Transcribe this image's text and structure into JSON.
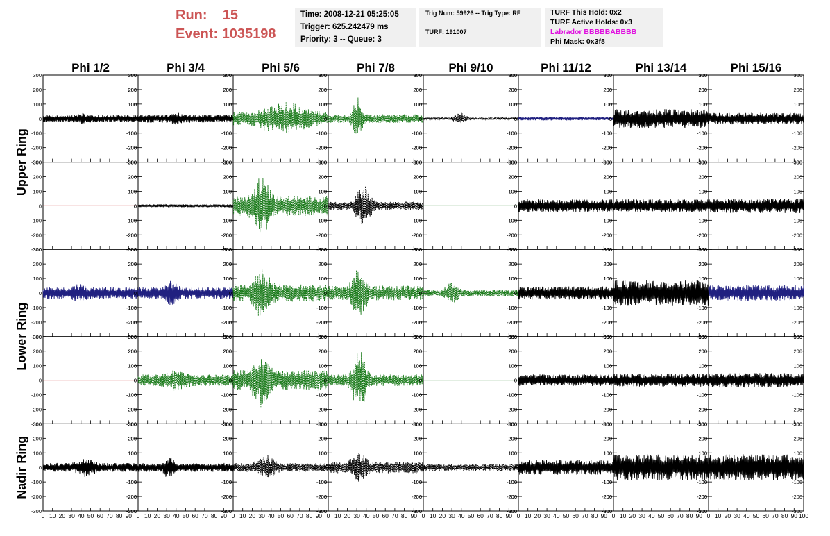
{
  "header": {
    "run_label": "Run:",
    "run": "15",
    "event_label": "Event:",
    "event": "1035198"
  },
  "info": {
    "time": "Time: 2008-12-21 05:25:05",
    "trigger": "Trigger: 625.242479 ms",
    "priority": "Priority: 3 -- Queue: 3",
    "trig": "Trig Num: 59926 -- Trig Type: RF",
    "turf": "TURF: 191007",
    "turf_hold": "TURF This Hold: 0x2",
    "turf_active": "TURF Active Holds: 0x3",
    "labrador": "Labrador BBBBBABBBB",
    "phi_mask": "Phi Mask: 0x3f8"
  },
  "chart_data": {
    "type": "line",
    "columns": [
      "Phi 1/2",
      "Phi 3/4",
      "Phi 5/6",
      "Phi 7/8",
      "Phi 9/10",
      "Phi 11/12",
      "Phi 13/14",
      "Phi 15/16"
    ],
    "ring_labels": [
      "Upper Ring",
      "Lower Ring",
      "Nadir Ring"
    ],
    "xlim": [
      0,
      100
    ],
    "ylim": [
      -300,
      300
    ],
    "xticks": [
      "0",
      "10",
      "20",
      "30",
      "40",
      "50",
      "60",
      "70",
      "80",
      "90",
      "100"
    ],
    "yticks": [
      "-300",
      "-200",
      "-100",
      "0",
      "100",
      "200",
      "300"
    ],
    "colors": {
      "black": "#000000",
      "green": "#1a7a1a",
      "blue": "#202080",
      "red": "#cc2222",
      "labrador": "#e010e0",
      "header": "#cc5555"
    },
    "rows": [
      [
        {
          "style": "black",
          "amp": 25,
          "burst": [
            30,
            55
          ],
          "burst_amp": 40
        },
        {
          "style": "black",
          "amp": 28,
          "burst": [
            30,
            50
          ],
          "burst_amp": 50
        },
        {
          "style": "green",
          "dashed": true,
          "amp": 45,
          "burst": [
            15,
            95
          ],
          "burst_amp": 130
        },
        {
          "style": "green",
          "dashed": true,
          "amp": 30,
          "burst": [
            22,
            40
          ],
          "burst_amp": 170
        },
        {
          "style": "black",
          "dashed": true,
          "amp": 8,
          "burst": [
            28,
            50
          ],
          "burst_amp": 60
        },
        {
          "style": "blue",
          "amp": 12,
          "burst": [
            20,
            60
          ],
          "burst_amp": 15
        },
        {
          "style": "black",
          "amp": 65,
          "burst": [
            0,
            100
          ],
          "burst_amp": 65
        },
        {
          "style": "black",
          "amp": 40,
          "burst": [
            0,
            100
          ],
          "burst_amp": 40
        }
      ],
      [
        {
          "style": "red",
          "flat": true
        },
        {
          "style": "black",
          "amp": 10,
          "burst": [
            0,
            100
          ],
          "burst_amp": 10
        },
        {
          "style": "green",
          "dashed": true,
          "amp": 70,
          "burst": [
            15,
            45
          ],
          "burst_amp": 230
        },
        {
          "style": "black",
          "dashed": true,
          "amp": 30,
          "burst": [
            25,
            50
          ],
          "burst_amp": 200
        },
        {
          "style": "green",
          "flat": true
        },
        {
          "style": "black",
          "amp": 45,
          "burst": [
            0,
            100
          ],
          "burst_amp": 45
        },
        {
          "style": "black",
          "amp": 45,
          "burst": [
            0,
            100
          ],
          "burst_amp": 45
        },
        {
          "style": "black",
          "amp": 50,
          "burst": [
            0,
            100
          ],
          "burst_amp": 50
        }
      ],
      [
        {
          "style": "blue",
          "amp": 40,
          "burst": [
            25,
            50
          ],
          "burst_amp": 70
        },
        {
          "style": "blue",
          "amp": 40,
          "burst": [
            25,
            45
          ],
          "burst_amp": 110
        },
        {
          "style": "green",
          "dashed": true,
          "amp": 60,
          "burst": [
            15,
            45
          ],
          "burst_amp": 200
        },
        {
          "style": "green",
          "dashed": true,
          "amp": 50,
          "burst": [
            20,
            45
          ],
          "burst_amp": 200
        },
        {
          "style": "green",
          "dashed": true,
          "amp": 25,
          "burst": [
            20,
            40
          ],
          "burst_amp": 100
        },
        {
          "style": "black",
          "amp": 45,
          "burst": [
            0,
            100
          ],
          "burst_amp": 45
        },
        {
          "style": "black",
          "amp": 90,
          "burst": [
            0,
            100
          ],
          "burst_amp": 90
        },
        {
          "style": "blue",
          "amp": 55,
          "burst": [
            0,
            100
          ],
          "burst_amp": 55
        }
      ],
      [
        {
          "style": "red",
          "flat": true
        },
        {
          "style": "green",
          "dashed": true,
          "amp": 40,
          "burst": [
            20,
            60
          ],
          "burst_amp": 80
        },
        {
          "style": "green",
          "dashed": true,
          "amp": 70,
          "burst": [
            15,
            45
          ],
          "burst_amp": 220
        },
        {
          "style": "green",
          "dashed": true,
          "amp": 40,
          "burst": [
            20,
            45
          ],
          "burst_amp": 250
        },
        {
          "style": "green",
          "flat": true
        },
        {
          "style": "black",
          "amp": 40,
          "burst": [
            0,
            100
          ],
          "burst_amp": 40
        },
        {
          "style": "black",
          "amp": 45,
          "burst": [
            0,
            100
          ],
          "burst_amp": 45
        },
        {
          "style": "black",
          "amp": 50,
          "burst": [
            0,
            100
          ],
          "burst_amp": 50
        }
      ],
      [
        {
          "style": "black",
          "amp": 30,
          "burst": [
            30,
            60
          ],
          "burst_amp": 80
        },
        {
          "style": "black",
          "amp": 30,
          "burst": [
            25,
            40
          ],
          "burst_amp": 100
        },
        {
          "style": "black",
          "dashed": true,
          "amp": 30,
          "burst": [
            20,
            50
          ],
          "burst_amp": 100
        },
        {
          "style": "black",
          "dashed": true,
          "amp": 40,
          "burst": [
            20,
            45
          ],
          "burst_amp": 130
        },
        {
          "style": "black",
          "dashed": true,
          "amp": 25,
          "burst": [
            0,
            100
          ],
          "burst_amp": 25
        },
        {
          "style": "black",
          "amp": 50,
          "burst": [
            0,
            100
          ],
          "burst_amp": 50
        },
        {
          "style": "black",
          "amp": 90,
          "burst": [
            0,
            100
          ],
          "burst_amp": 90
        },
        {
          "style": "black",
          "amp": 90,
          "burst": [
            0,
            100
          ],
          "burst_amp": 90
        }
      ]
    ]
  }
}
